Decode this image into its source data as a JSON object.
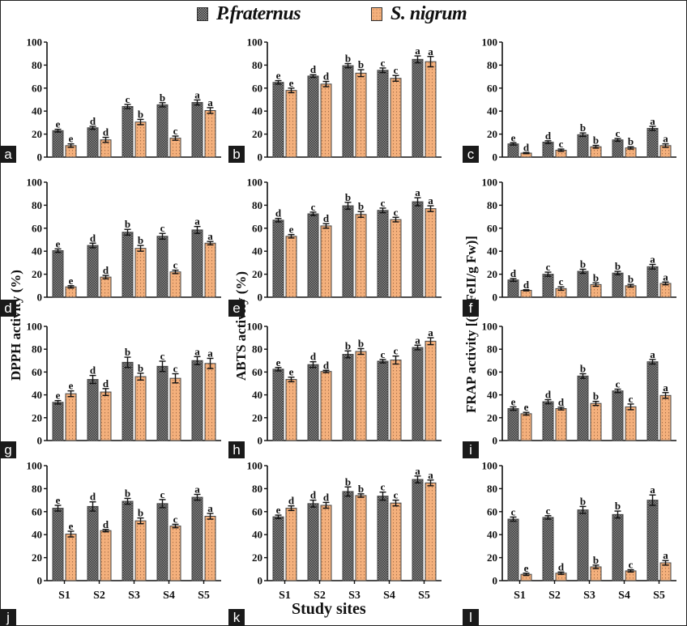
{
  "legend": {
    "series": [
      {
        "name": "P.fraternus",
        "color": "#6e6e6e",
        "pattern": "checker"
      },
      {
        "name": "S. nigrum",
        "color": "#f4b07c",
        "pattern": "dots"
      }
    ]
  },
  "y_axis_titles": {
    "col1": "DPPH activity (%)",
    "col2": "ABTS activity (%)",
    "col3": "FRAP activity [(µgFeII/g Fw)]"
  },
  "x_axis_title": "Study sites",
  "chart_data": [
    {
      "panel": "a",
      "type": "bar",
      "categories": [
        "S1",
        "S2",
        "S3",
        "S4",
        "S5"
      ],
      "ylim": [
        0,
        100
      ],
      "yticks": [
        0,
        20,
        40,
        60,
        80,
        100
      ],
      "series": [
        {
          "name": "P.fraternus",
          "values": [
            23,
            25.5,
            44,
            45.5,
            47.5
          ],
          "errors": [
            1.2,
            1.3,
            1.8,
            1.8,
            2.2
          ],
          "letters": [
            "e",
            "d",
            "c",
            "b",
            "a"
          ]
        },
        {
          "name": "S. nigrum",
          "values": [
            10,
            15,
            30.5,
            16.5,
            40.5
          ],
          "errors": [
            1.5,
            2.2,
            2.3,
            1.8,
            2.5
          ],
          "letters": [
            "e",
            "d",
            "b",
            "c",
            "a"
          ]
        }
      ]
    },
    {
      "panel": "b",
      "type": "bar",
      "categories": [
        "S1",
        "S2",
        "S3",
        "S4",
        "S5"
      ],
      "ylim": [
        0,
        100
      ],
      "yticks": [
        0,
        20,
        40,
        60,
        80,
        100
      ],
      "series": [
        {
          "name": "P.fraternus",
          "values": [
            65,
            70.5,
            79.5,
            75.5,
            85
          ],
          "errors": [
            1.5,
            1.2,
            1.8,
            2,
            3
          ],
          "letters": [
            "e",
            "d",
            "b",
            "c",
            "a"
          ]
        },
        {
          "name": "S. nigrum",
          "values": [
            58,
            63.5,
            73,
            68.5,
            83
          ],
          "errors": [
            2,
            2.3,
            3,
            2.5,
            4.5
          ],
          "letters": [
            "e",
            "d",
            "b",
            "c",
            "a"
          ]
        }
      ]
    },
    {
      "panel": "c",
      "type": "bar",
      "categories": [
        "S1",
        "S2",
        "S3",
        "S4",
        "S5"
      ],
      "ylim": [
        0,
        100
      ],
      "yticks": [
        0,
        20,
        40,
        60,
        80,
        100
      ],
      "series": [
        {
          "name": "P.fraternus",
          "values": [
            11.5,
            13,
            19.5,
            15,
            25
          ],
          "errors": [
            1,
            1.2,
            1.5,
            1.2,
            1.8
          ],
          "letters": [
            "e",
            "d",
            "b",
            "c",
            "a"
          ]
        },
        {
          "name": "S. nigrum",
          "values": [
            3.5,
            6,
            9,
            8,
            10
          ],
          "errors": [
            0.5,
            1,
            1.2,
            1,
            1.5
          ],
          "letters": [
            "d",
            "c",
            "b",
            "b",
            "a"
          ]
        }
      ]
    },
    {
      "panel": "d",
      "type": "bar",
      "categories": [
        "S1",
        "S2",
        "S3",
        "S4",
        "S5"
      ],
      "ylim": [
        0,
        100
      ],
      "yticks": [
        0,
        20,
        40,
        60,
        80,
        100
      ],
      "series": [
        {
          "name": "P.fraternus",
          "values": [
            40.5,
            45,
            56.5,
            53,
            58.5
          ],
          "errors": [
            1.5,
            2,
            2.5,
            2.5,
            3
          ],
          "letters": [
            "e",
            "d",
            "b",
            "c",
            "a"
          ]
        },
        {
          "name": "S. nigrum",
          "values": [
            9,
            17.5,
            42.5,
            22,
            47
          ],
          "errors": [
            1,
            1.5,
            2.5,
            1.5,
            1.5
          ],
          "letters": [
            "e",
            "d",
            "b",
            "c",
            "a"
          ]
        }
      ]
    },
    {
      "panel": "e",
      "type": "bar",
      "categories": [
        "S1",
        "S2",
        "S3",
        "S4",
        "S5"
      ],
      "ylim": [
        0,
        100
      ],
      "yticks": [
        0,
        20,
        40,
        60,
        80,
        100
      ],
      "series": [
        {
          "name": "P.fraternus",
          "values": [
            67,
            72.5,
            79.5,
            75.5,
            83
          ],
          "errors": [
            1.5,
            1.5,
            3,
            2,
            3.5
          ],
          "letters": [
            "d",
            "c",
            "b",
            "c",
            "a"
          ]
        },
        {
          "name": "S. nigrum",
          "values": [
            53,
            62,
            72,
            67.5,
            77
          ],
          "errors": [
            1.5,
            2,
            2.5,
            2,
            2.5
          ],
          "letters": [
            "e",
            "d",
            "b",
            "c",
            "a"
          ]
        }
      ]
    },
    {
      "panel": "f",
      "type": "bar",
      "categories": [
        "S1",
        "S2",
        "S3",
        "S4",
        "S5"
      ],
      "ylim": [
        0,
        100
      ],
      "yticks": [
        0,
        20,
        40,
        60,
        80,
        100
      ],
      "series": [
        {
          "name": "P.fraternus",
          "values": [
            15,
            20,
            22.5,
            21,
            26.5
          ],
          "errors": [
            1.2,
            1.8,
            1.8,
            1.5,
            2
          ],
          "letters": [
            "d",
            "c",
            "b",
            "b",
            "a"
          ]
        },
        {
          "name": "S. nigrum",
          "values": [
            6,
            7.5,
            11,
            10,
            12
          ],
          "errors": [
            0.5,
            1.5,
            1.5,
            1.2,
            1.2
          ],
          "letters": [
            "d",
            "c",
            "b",
            "b",
            "a"
          ]
        }
      ]
    },
    {
      "panel": "g",
      "type": "bar",
      "categories": [
        "S1",
        "S2",
        "S3",
        "S4",
        "S5"
      ],
      "ylim": [
        0,
        100
      ],
      "yticks": [
        0,
        20,
        40,
        60,
        80,
        100
      ],
      "series": [
        {
          "name": "P.fraternus",
          "values": [
            33.5,
            53.5,
            68.5,
            65,
            70
          ],
          "errors": [
            1.5,
            3.5,
            4.5,
            4.5,
            3.5
          ],
          "letters": [
            "e",
            "d",
            "b",
            "c",
            "a"
          ]
        },
        {
          "name": "S. nigrum",
          "values": [
            41,
            42.5,
            56,
            54.5,
            67.5
          ],
          "errors": [
            2.5,
            3,
            3,
            4,
            4.5
          ],
          "letters": [
            "e",
            "d",
            "b",
            "c",
            "a"
          ]
        }
      ]
    },
    {
      "panel": "h",
      "type": "bar",
      "categories": [
        "S1",
        "S2",
        "S3",
        "S4",
        "S5"
      ],
      "ylim": [
        0,
        100
      ],
      "yticks": [
        0,
        20,
        40,
        60,
        80,
        100
      ],
      "series": [
        {
          "name": "P.fraternus",
          "values": [
            62.5,
            66.5,
            75.5,
            69.5,
            81.5
          ],
          "errors": [
            1.5,
            2.5,
            3,
            1.5,
            2
          ],
          "letters": [
            "e",
            "d",
            "b",
            "c",
            "a"
          ]
        },
        {
          "name": "S. nigrum",
          "values": [
            53.5,
            60.5,
            78,
            70.5,
            87
          ],
          "errors": [
            2,
            1,
            2.5,
            3.5,
            3
          ],
          "letters": [
            "e",
            "d",
            "b",
            "c",
            "a"
          ]
        }
      ]
    },
    {
      "panel": "i",
      "type": "bar",
      "categories": [
        "S1",
        "S2",
        "S3",
        "S4",
        "S5"
      ],
      "ylim": [
        0,
        100
      ],
      "yticks": [
        0,
        20,
        40,
        60,
        80,
        100
      ],
      "series": [
        {
          "name": "P.fraternus",
          "values": [
            28,
            34,
            56.5,
            43.5,
            69
          ],
          "errors": [
            1.5,
            1.8,
            2,
            1.5,
            2
          ],
          "letters": [
            "e",
            "d",
            "b",
            "c",
            "a"
          ]
        },
        {
          "name": "S. nigrum",
          "values": [
            23.5,
            28,
            32.5,
            29.5,
            39.5
          ],
          "errors": [
            1.2,
            1.2,
            1.8,
            2.5,
            2.5
          ],
          "letters": [
            "e",
            "d",
            "b",
            "c",
            "a"
          ]
        }
      ]
    },
    {
      "panel": "j",
      "type": "bar",
      "categories": [
        "S1",
        "S2",
        "S3",
        "S4",
        "S5"
      ],
      "ylim": [
        0,
        100
      ],
      "yticks": [
        0,
        20,
        40,
        60,
        80,
        100
      ],
      "series": [
        {
          "name": "P.fraternus",
          "values": [
            63,
            64.5,
            69,
            67,
            72.5
          ],
          "errors": [
            2.5,
            4,
            2.5,
            3.5,
            2.5
          ],
          "letters": [
            "e",
            "d",
            "b",
            "c",
            "a"
          ]
        },
        {
          "name": "S. nigrum",
          "values": [
            40.5,
            43.5,
            52,
            47.5,
            56
          ],
          "errors": [
            2.5,
            1,
            2.5,
            1.5,
            2.5
          ],
          "letters": [
            "e",
            "d",
            "b",
            "c",
            "a"
          ]
        }
      ]
    },
    {
      "panel": "k",
      "type": "bar",
      "categories": [
        "S1",
        "S2",
        "S3",
        "S4",
        "S5"
      ],
      "ylim": [
        0,
        100
      ],
      "yticks": [
        0,
        20,
        40,
        60,
        80,
        100
      ],
      "series": [
        {
          "name": "P.fraternus",
          "values": [
            55.5,
            67,
            77.5,
            73.5,
            88
          ],
          "errors": [
            1.5,
            3,
            4,
            3.5,
            3
          ],
          "letters": [
            "e",
            "d",
            "b",
            "c",
            "a"
          ]
        },
        {
          "name": "S. nigrum",
          "values": [
            63,
            65.5,
            74,
            67.5,
            85
          ],
          "errors": [
            2,
            2.5,
            1.5,
            2.5,
            2.5
          ],
          "letters": [
            "d",
            "d",
            "b",
            "c",
            "a"
          ]
        }
      ]
    },
    {
      "panel": "l",
      "type": "bar",
      "categories": [
        "S1",
        "S2",
        "S3",
        "S4",
        "S5"
      ],
      "ylim": [
        0,
        100
      ],
      "yticks": [
        0,
        20,
        40,
        60,
        80,
        100
      ],
      "series": [
        {
          "name": "P.fraternus",
          "values": [
            53.5,
            55,
            61.5,
            57.5,
            70
          ],
          "errors": [
            1.8,
            1.5,
            3,
            3,
            4.5
          ],
          "letters": [
            "c",
            "c",
            "b",
            "b",
            "a"
          ]
        },
        {
          "name": "S. nigrum",
          "values": [
            5.5,
            6.5,
            12,
            8.5,
            15.5
          ],
          "errors": [
            1,
            1,
            1.5,
            1,
            2
          ],
          "letters": [
            "e",
            "d",
            "b",
            "c",
            "a"
          ]
        }
      ]
    }
  ]
}
